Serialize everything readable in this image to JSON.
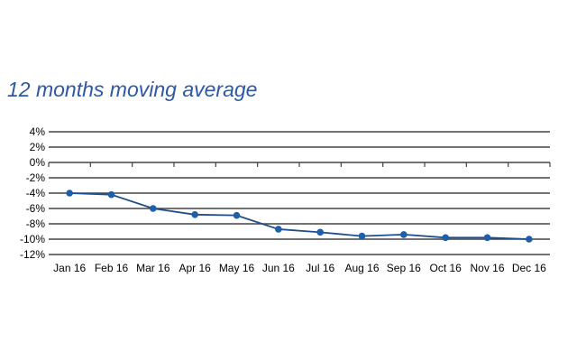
{
  "chart_data": {
    "type": "line",
    "title": "12 months moving average",
    "xlabel": "",
    "ylabel": "",
    "categories": [
      "Jan 16",
      "Feb 16",
      "Mar 16",
      "Apr 16",
      "May 16",
      "Jun 16",
      "Jul 16",
      "Aug 16",
      "Sep 16",
      "Oct 16",
      "Nov 16",
      "Dec 16"
    ],
    "series": [
      {
        "values": [
          -4.0,
          -4.2,
          -6.0,
          -6.8,
          -6.9,
          -8.7,
          -9.1,
          -9.6,
          -9.4,
          -9.8,
          -9.8,
          -10.0
        ]
      }
    ],
    "ylim": [
      -12,
      4
    ],
    "yticks": [
      4,
      2,
      0,
      -2,
      -4,
      -6,
      -8,
      -10,
      -12
    ],
    "ytick_labels": [
      "4%",
      "2%",
      "0%",
      "-2%",
      "-4%",
      "-6%",
      "-8%",
      "-10%",
      "-12%"
    ],
    "grid": true,
    "colors": {
      "line": "#1f4e8c",
      "marker": "#1f5fa8",
      "grid": "#444444",
      "title": "#2e58a6"
    }
  }
}
